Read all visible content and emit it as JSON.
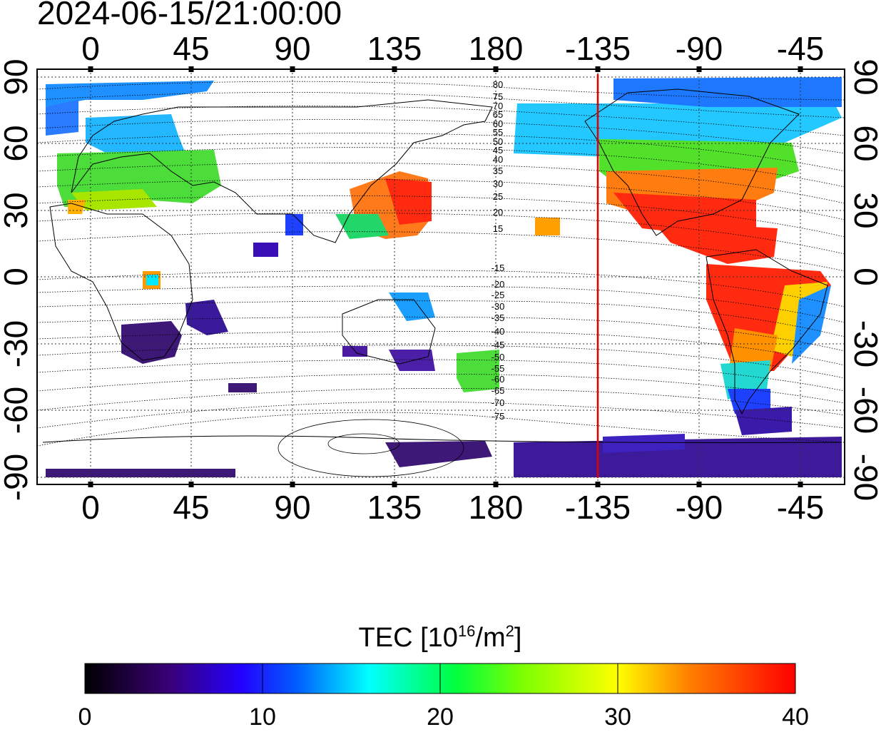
{
  "title": "2024-06-15/21:00:00",
  "map": {
    "top_lon_labels": [
      "0",
      "45",
      "90",
      "135",
      "180",
      "-135",
      "-90",
      "-45"
    ],
    "bottom_lon_labels": [
      "0",
      "45",
      "90",
      "135",
      "180",
      "-135",
      "-90",
      "-45"
    ],
    "left_lat_labels": [
      "90",
      "60",
      "30",
      "0",
      "-30",
      "-60",
      "-90"
    ],
    "right_lat_labels": [
      "90",
      "60",
      "30",
      "0",
      "-30",
      "-60",
      "-90"
    ],
    "contour_labels": [
      "80",
      "75",
      "70",
      "65",
      "60",
      "55",
      "50",
      "45",
      "40",
      "35",
      "30",
      "25",
      "20",
      "15",
      "-15",
      "-20",
      "-25",
      "-30",
      "-35",
      "-40",
      "-45",
      "-50",
      "-55",
      "-60",
      "-65",
      "-70",
      "-75"
    ],
    "terminator_color": "#e00000"
  },
  "colorbar": {
    "label_prefix": "TEC  [10",
    "label_sup1": "16",
    "label_mid": "/m",
    "label_sup2": "2",
    "label_suffix": "]",
    "tick_labels": [
      "0",
      "10",
      "20",
      "30",
      "40"
    ],
    "range": [
      0,
      40
    ],
    "colors": [
      "#000000",
      "#4b0082",
      "#0000ff",
      "#00ffff",
      "#00ff00",
      "#ffff00",
      "#ff8000",
      "#ff0000"
    ]
  }
}
